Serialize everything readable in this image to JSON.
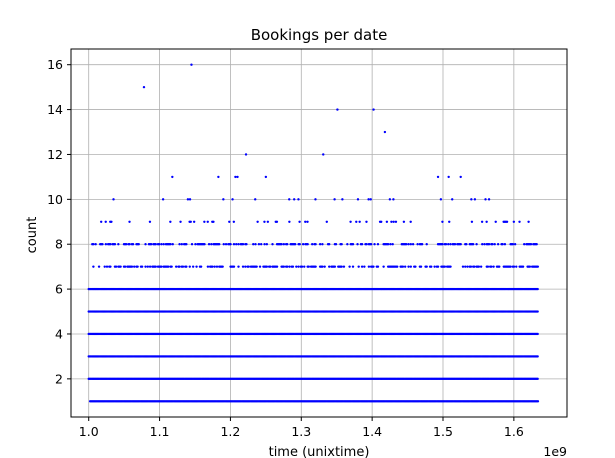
{
  "chart_data": {
    "type": "scatter",
    "title": "Bookings per date",
    "xlabel": "time (unixtime)",
    "ylabel": "count",
    "x_offset_text": "1e9",
    "xlim": [
      0.975,
      1.675
    ],
    "ylim": [
      0.3,
      16.7
    ],
    "x_ticks": [
      1.0,
      1.1,
      1.2,
      1.3,
      1.4,
      1.5,
      1.6
    ],
    "x_tick_labels": [
      "1.0",
      "1.1",
      "1.2",
      "1.3",
      "1.4",
      "1.5",
      "1.6"
    ],
    "y_ticks": [
      2,
      4,
      6,
      8,
      10,
      12,
      14,
      16
    ],
    "y_tick_labels": [
      "2",
      "4",
      "6",
      "8",
      "10",
      "12",
      "14",
      "16"
    ],
    "grid": true,
    "marker_color": "#0000ff",
    "series": [
      {
        "x_range": [
          1.0,
          1.635
        ],
        "dense_rows": [
          {
            "y": 1,
            "from": 1.002,
            "to": 1.635
          },
          {
            "y": 2,
            "from": 1.0,
            "to": 1.635
          },
          {
            "y": 3,
            "from": 1.0,
            "to": 1.635
          },
          {
            "y": 4,
            "from": 1.0,
            "to": 1.635
          },
          {
            "y": 5,
            "from": 1.0,
            "to": 1.635
          },
          {
            "y": 6,
            "from": 1.0,
            "to": 1.635
          }
        ],
        "sparse_rows": [
          {
            "y": 7,
            "from": 1.005,
            "to": 1.635,
            "density": 0.55
          },
          {
            "y": 8,
            "from": 1.005,
            "to": 1.635,
            "density": 0.5
          },
          {
            "y": 9,
            "from": 1.008,
            "to": 1.635,
            "density": 0.12
          }
        ],
        "points": [
          {
            "x": 1.035,
            "y": 10
          },
          {
            "x": 1.078,
            "y": 15
          },
          {
            "x": 1.105,
            "y": 10
          },
          {
            "x": 1.118,
            "y": 11
          },
          {
            "x": 1.14,
            "y": 10
          },
          {
            "x": 1.143,
            "y": 10
          },
          {
            "x": 1.145,
            "y": 16
          },
          {
            "x": 1.183,
            "y": 11
          },
          {
            "x": 1.19,
            "y": 10
          },
          {
            "x": 1.203,
            "y": 10
          },
          {
            "x": 1.207,
            "y": 11
          },
          {
            "x": 1.21,
            "y": 11
          },
          {
            "x": 1.222,
            "y": 12
          },
          {
            "x": 1.235,
            "y": 10
          },
          {
            "x": 1.25,
            "y": 11
          },
          {
            "x": 1.283,
            "y": 10
          },
          {
            "x": 1.29,
            "y": 10
          },
          {
            "x": 1.296,
            "y": 10
          },
          {
            "x": 1.32,
            "y": 10
          },
          {
            "x": 1.331,
            "y": 12
          },
          {
            "x": 1.347,
            "y": 10
          },
          {
            "x": 1.351,
            "y": 14
          },
          {
            "x": 1.358,
            "y": 10
          },
          {
            "x": 1.38,
            "y": 10
          },
          {
            "x": 1.395,
            "y": 10
          },
          {
            "x": 1.398,
            "y": 10
          },
          {
            "x": 1.402,
            "y": 14
          },
          {
            "x": 1.418,
            "y": 13
          },
          {
            "x": 1.425,
            "y": 10
          },
          {
            "x": 1.43,
            "y": 10
          },
          {
            "x": 1.493,
            "y": 11
          },
          {
            "x": 1.497,
            "y": 10
          },
          {
            "x": 1.508,
            "y": 11
          },
          {
            "x": 1.513,
            "y": 10
          },
          {
            "x": 1.525,
            "y": 11
          },
          {
            "x": 1.54,
            "y": 10
          },
          {
            "x": 1.545,
            "y": 10
          },
          {
            "x": 1.56,
            "y": 10
          },
          {
            "x": 1.565,
            "y": 10
          }
        ]
      }
    ]
  }
}
